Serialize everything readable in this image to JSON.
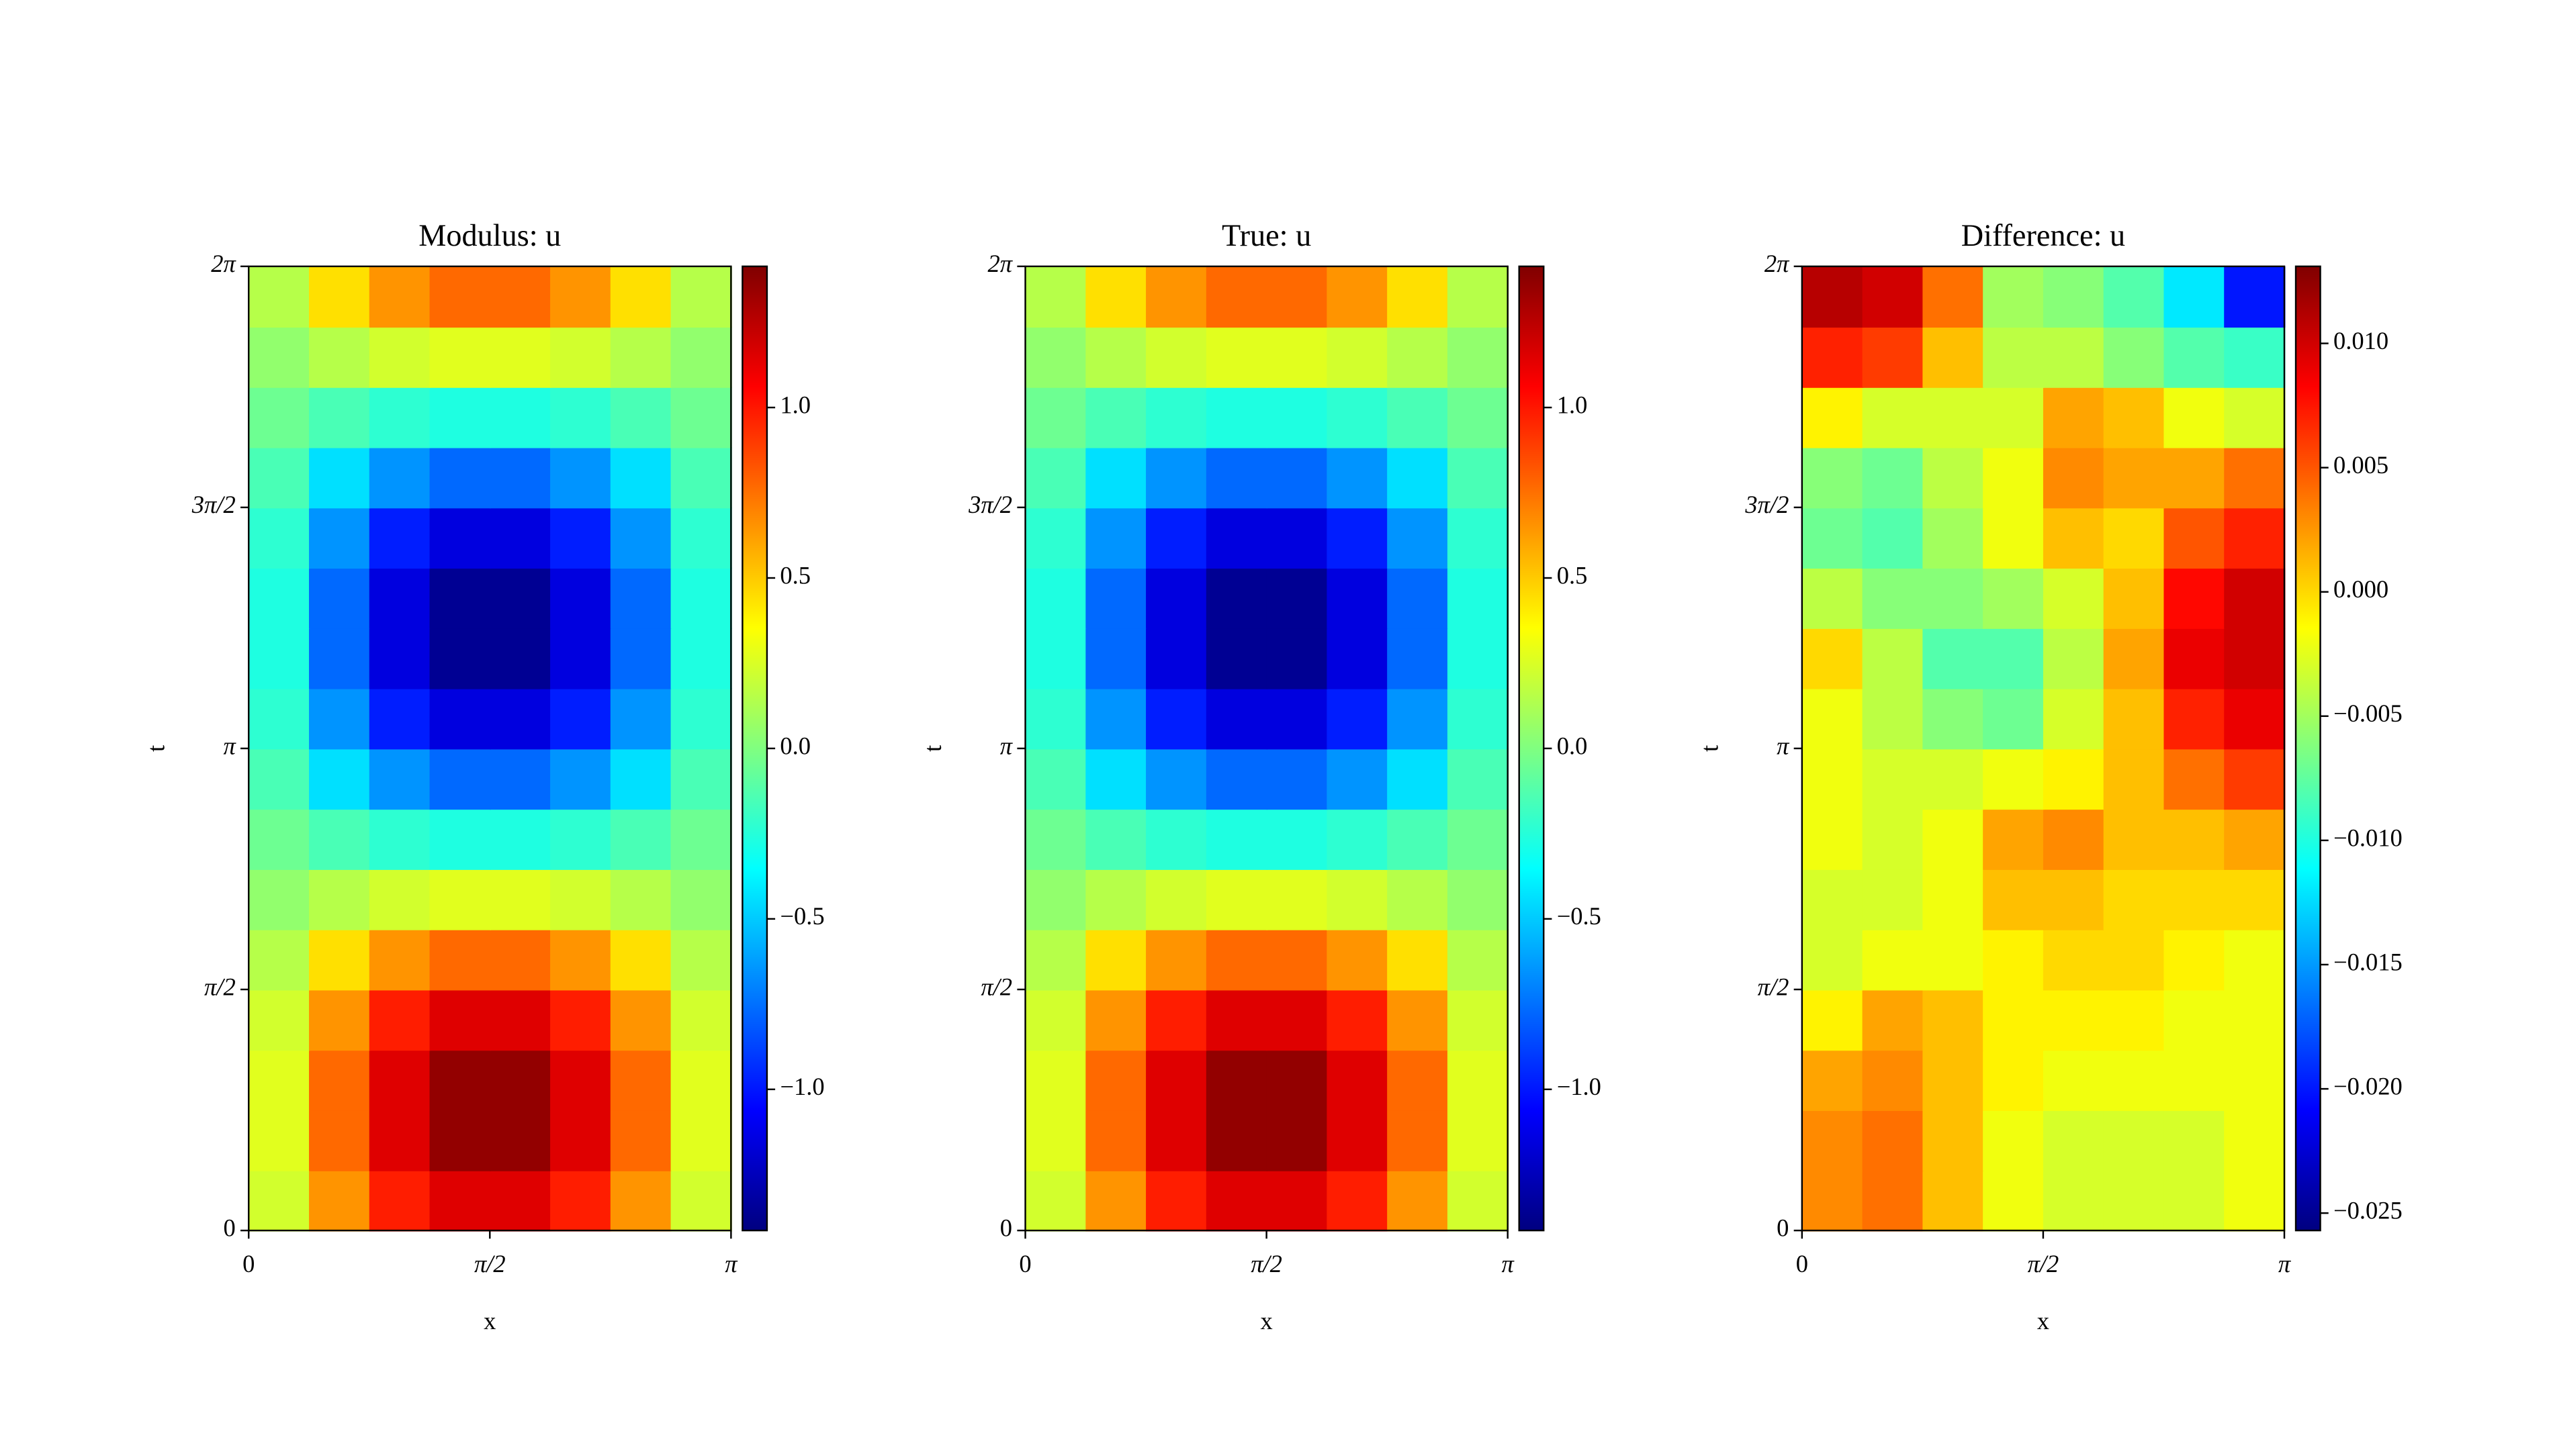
{
  "chart_data": [
    {
      "type": "heatmap",
      "title": "Modulus: u",
      "xlabel": "x",
      "ylabel": "t",
      "colormap": "jet",
      "xlim": [
        0,
        3.1416
      ],
      "xticks": [
        0,
        {
          "value": 1.5708,
          "label": "π/2"
        },
        {
          "value": 3.1416,
          "label": "π"
        }
      ],
      "ylim": [
        0,
        6.2832
      ],
      "yticks": [
        0,
        {
          "value": 1.5708,
          "label": "π/2"
        },
        {
          "value": 3.1416,
          "label": "π"
        },
        {
          "value": 4.7124,
          "label": "3π/2"
        },
        {
          "value": 6.2832,
          "label": "2π"
        }
      ],
      "zlim": [
        -1.414,
        1.414
      ],
      "colorbar_ticks": [
        {
          "value": -1,
          "label": "−1.0"
        },
        {
          "value": -0.5,
          "label": "−0.5"
        },
        {
          "value": 0,
          "label": "0.0"
        },
        {
          "value": 0.5,
          "label": "0.5"
        },
        {
          "value": 1,
          "label": "1.0"
        }
      ],
      "z": [
        [
          0.23,
          0.65,
          0.98,
          1.15,
          1.15,
          0.98,
          0.65,
          0.23
        ],
        [
          0.27,
          0.77,
          1.15,
          1.36,
          1.36,
          1.15,
          0.77,
          0.27
        ],
        [
          0.27,
          0.77,
          1.15,
          1.36,
          1.36,
          1.15,
          0.77,
          0.27
        ],
        [
          0.23,
          0.65,
          0.98,
          1.15,
          1.15,
          0.98,
          0.65,
          0.23
        ],
        [
          0.15,
          0.44,
          0.65,
          0.77,
          0.77,
          0.65,
          0.44,
          0.15
        ],
        [
          0.05,
          0.15,
          0.23,
          0.27,
          0.27,
          0.23,
          0.15,
          0.05
        ],
        [
          -0.05,
          -0.15,
          -0.23,
          -0.27,
          -0.27,
          -0.23,
          -0.15,
          -0.05
        ],
        [
          -0.15,
          -0.44,
          -0.65,
          -0.77,
          -0.77,
          -0.65,
          -0.44,
          -0.15
        ],
        [
          -0.23,
          -0.65,
          -0.98,
          -1.15,
          -1.15,
          -0.98,
          -0.65,
          -0.23
        ],
        [
          -0.27,
          -0.77,
          -1.15,
          -1.36,
          -1.36,
          -1.15,
          -0.77,
          -0.27
        ],
        [
          -0.27,
          -0.77,
          -1.15,
          -1.36,
          -1.36,
          -1.15,
          -0.77,
          -0.27
        ],
        [
          -0.23,
          -0.65,
          -0.98,
          -1.15,
          -1.15,
          -0.98,
          -0.65,
          -0.23
        ],
        [
          -0.15,
          -0.44,
          -0.65,
          -0.77,
          -0.77,
          -0.65,
          -0.44,
          -0.15
        ],
        [
          -0.05,
          -0.15,
          -0.23,
          -0.27,
          -0.27,
          -0.23,
          -0.15,
          -0.05
        ],
        [
          0.05,
          0.15,
          0.23,
          0.27,
          0.27,
          0.23,
          0.15,
          0.05
        ],
        [
          0.15,
          0.44,
          0.65,
          0.77,
          0.77,
          0.65,
          0.44,
          0.15
        ]
      ]
    },
    {
      "type": "heatmap",
      "title": "True: u",
      "xlabel": "x",
      "ylabel": "t",
      "colormap": "jet",
      "xlim": [
        0,
        3.1416
      ],
      "xticks": [
        0,
        {
          "value": 1.5708,
          "label": "π/2"
        },
        {
          "value": 3.1416,
          "label": "π"
        }
      ],
      "ylim": [
        0,
        6.2832
      ],
      "yticks": [
        0,
        {
          "value": 1.5708,
          "label": "π/2"
        },
        {
          "value": 3.1416,
          "label": "π"
        },
        {
          "value": 4.7124,
          "label": "3π/2"
        },
        {
          "value": 6.2832,
          "label": "2π"
        }
      ],
      "zlim": [
        -1.414,
        1.414
      ],
      "colorbar_ticks": [
        {
          "value": -1,
          "label": "−1.0"
        },
        {
          "value": -0.5,
          "label": "−0.5"
        },
        {
          "value": 0,
          "label": "0.0"
        },
        {
          "value": 0.5,
          "label": "0.5"
        },
        {
          "value": 1,
          "label": "1.0"
        }
      ],
      "z": [
        [
          0.23,
          0.65,
          0.98,
          1.15,
          1.15,
          0.98,
          0.65,
          0.23
        ],
        [
          0.27,
          0.77,
          1.15,
          1.36,
          1.36,
          1.15,
          0.77,
          0.27
        ],
        [
          0.27,
          0.77,
          1.15,
          1.36,
          1.36,
          1.15,
          0.77,
          0.27
        ],
        [
          0.23,
          0.65,
          0.98,
          1.15,
          1.15,
          0.98,
          0.65,
          0.23
        ],
        [
          0.15,
          0.44,
          0.65,
          0.77,
          0.77,
          0.65,
          0.44,
          0.15
        ],
        [
          0.05,
          0.15,
          0.23,
          0.27,
          0.27,
          0.23,
          0.15,
          0.05
        ],
        [
          -0.05,
          -0.15,
          -0.23,
          -0.27,
          -0.27,
          -0.23,
          -0.15,
          -0.05
        ],
        [
          -0.15,
          -0.44,
          -0.65,
          -0.77,
          -0.77,
          -0.65,
          -0.44,
          -0.15
        ],
        [
          -0.23,
          -0.65,
          -0.98,
          -1.15,
          -1.15,
          -0.98,
          -0.65,
          -0.23
        ],
        [
          -0.27,
          -0.77,
          -1.15,
          -1.36,
          -1.36,
          -1.15,
          -0.77,
          -0.27
        ],
        [
          -0.27,
          -0.77,
          -1.15,
          -1.36,
          -1.36,
          -1.15,
          -0.77,
          -0.27
        ],
        [
          -0.23,
          -0.65,
          -0.98,
          -1.15,
          -1.15,
          -0.98,
          -0.65,
          -0.23
        ],
        [
          -0.15,
          -0.44,
          -0.65,
          -0.77,
          -0.77,
          -0.65,
          -0.44,
          -0.15
        ],
        [
          -0.05,
          -0.15,
          -0.23,
          -0.27,
          -0.27,
          -0.23,
          -0.15,
          -0.05
        ],
        [
          0.05,
          0.15,
          0.23,
          0.27,
          0.27,
          0.23,
          0.15,
          0.05
        ],
        [
          0.15,
          0.44,
          0.65,
          0.77,
          0.77,
          0.65,
          0.44,
          0.15
        ]
      ]
    },
    {
      "type": "heatmap",
      "title": "Difference: u",
      "xlabel": "x",
      "ylabel": "t",
      "colormap": "jet",
      "xlim": [
        0,
        3.1416
      ],
      "xticks": [
        0,
        {
          "value": 1.5708,
          "label": "π/2"
        },
        {
          "value": 3.1416,
          "label": "π"
        }
      ],
      "ylim": [
        0,
        6.2832
      ],
      "yticks": [
        0,
        {
          "value": 1.5708,
          "label": "π/2"
        },
        {
          "value": 3.1416,
          "label": "π"
        },
        {
          "value": 4.7124,
          "label": "3π/2"
        },
        {
          "value": 6.2832,
          "label": "2π"
        }
      ],
      "zlim": [
        -0.0257,
        0.0131
      ],
      "colorbar_ticks": [
        {
          "value": -0.025,
          "label": "−0.025"
        },
        {
          "value": -0.02,
          "label": "−0.020"
        },
        {
          "value": -0.015,
          "label": "−0.015"
        },
        {
          "value": -0.01,
          "label": "−0.010"
        },
        {
          "value": -0.005,
          "label": "−0.005"
        },
        {
          "value": 0,
          "label": "0.000"
        },
        {
          "value": 0.005,
          "label": "0.005"
        },
        {
          "value": 0.01,
          "label": "0.010"
        }
      ],
      "z": [
        [
          0.003,
          0.004,
          0.001,
          -0.002,
          -0.003,
          -0.003,
          -0.003,
          -0.002
        ],
        [
          0.003,
          0.004,
          0.001,
          -0.002,
          -0.003,
          -0.003,
          -0.003,
          -0.002
        ],
        [
          0.002,
          0.003,
          0.001,
          -0.001,
          -0.002,
          -0.002,
          -0.002,
          -0.002
        ],
        [
          -0.001,
          0.002,
          0.001,
          -0.001,
          -0.001,
          -0.001,
          -0.002,
          -0.002
        ],
        [
          -0.003,
          -0.002,
          -0.002,
          -0.001,
          0.0,
          0.0,
          -0.001,
          -0.002
        ],
        [
          -0.003,
          -0.003,
          -0.002,
          0.001,
          0.001,
          0.0,
          0.0,
          0.0
        ],
        [
          -0.002,
          -0.003,
          -0.002,
          0.002,
          0.003,
          0.001,
          0.001,
          0.002
        ],
        [
          -0.002,
          -0.003,
          -0.003,
          -0.002,
          -0.001,
          0.001,
          0.004,
          0.006
        ],
        [
          -0.002,
          -0.004,
          -0.006,
          -0.007,
          -0.003,
          0.001,
          0.007,
          0.009
        ],
        [
          0.0,
          -0.004,
          -0.008,
          -0.008,
          -0.004,
          0.002,
          0.009,
          0.01
        ],
        [
          -0.004,
          -0.006,
          -0.006,
          -0.005,
          -0.003,
          0.001,
          0.008,
          0.01
        ],
        [
          -0.007,
          -0.008,
          -0.005,
          -0.002,
          0.001,
          0.0,
          0.005,
          0.007
        ],
        [
          -0.006,
          -0.007,
          -0.004,
          -0.002,
          0.003,
          0.002,
          0.002,
          0.004
        ],
        [
          -0.001,
          -0.003,
          -0.003,
          -0.003,
          0.002,
          0.001,
          -0.002,
          -0.003
        ],
        [
          0.007,
          0.006,
          0.001,
          -0.004,
          -0.004,
          -0.006,
          -0.008,
          -0.009
        ],
        [
          0.011,
          0.01,
          0.004,
          -0.005,
          -0.006,
          -0.008,
          -0.012,
          -0.02
        ]
      ]
    }
  ]
}
